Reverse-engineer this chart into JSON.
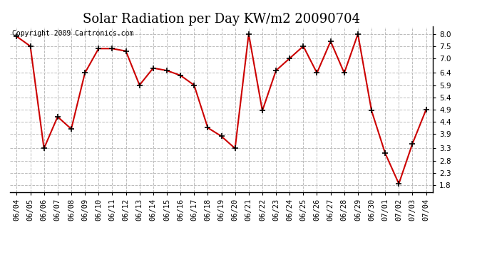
{
  "title": "Solar Radiation per Day KW/m2 20090704",
  "copyright": "Copyright 2009 Cartronics.com",
  "dates": [
    "06/04",
    "06/05",
    "06/06",
    "06/07",
    "06/08",
    "06/09",
    "06/10",
    "06/11",
    "06/12",
    "06/13",
    "06/14",
    "06/15",
    "06/16",
    "06/17",
    "06/18",
    "06/19",
    "06/20",
    "06/21",
    "06/22",
    "06/23",
    "06/24",
    "06/25",
    "06/26",
    "06/27",
    "06/28",
    "06/29",
    "06/30",
    "07/01",
    "07/02",
    "07/03",
    "07/04"
  ],
  "values": [
    7.9,
    7.5,
    3.3,
    4.6,
    4.1,
    6.4,
    7.4,
    7.4,
    7.3,
    5.9,
    6.6,
    6.5,
    6.3,
    5.9,
    4.15,
    3.8,
    3.3,
    8.0,
    4.85,
    6.5,
    7.0,
    7.5,
    6.4,
    7.7,
    6.4,
    8.0,
    4.85,
    3.1,
    1.85,
    3.5,
    4.9
  ],
  "line_color": "#cc0000",
  "marker_color": "#000000",
  "marker_size": 6,
  "line_width": 1.5,
  "ylim": [
    1.5,
    8.3
  ],
  "yticks": [
    1.8,
    2.3,
    2.8,
    3.3,
    3.9,
    4.4,
    4.9,
    5.4,
    5.9,
    6.4,
    7.0,
    7.5,
    8.0
  ],
  "bg_color": "#ffffff",
  "grid_color": "#bbbbbb",
  "title_fontsize": 13,
  "tick_fontsize": 7.5,
  "copyright_fontsize": 7
}
